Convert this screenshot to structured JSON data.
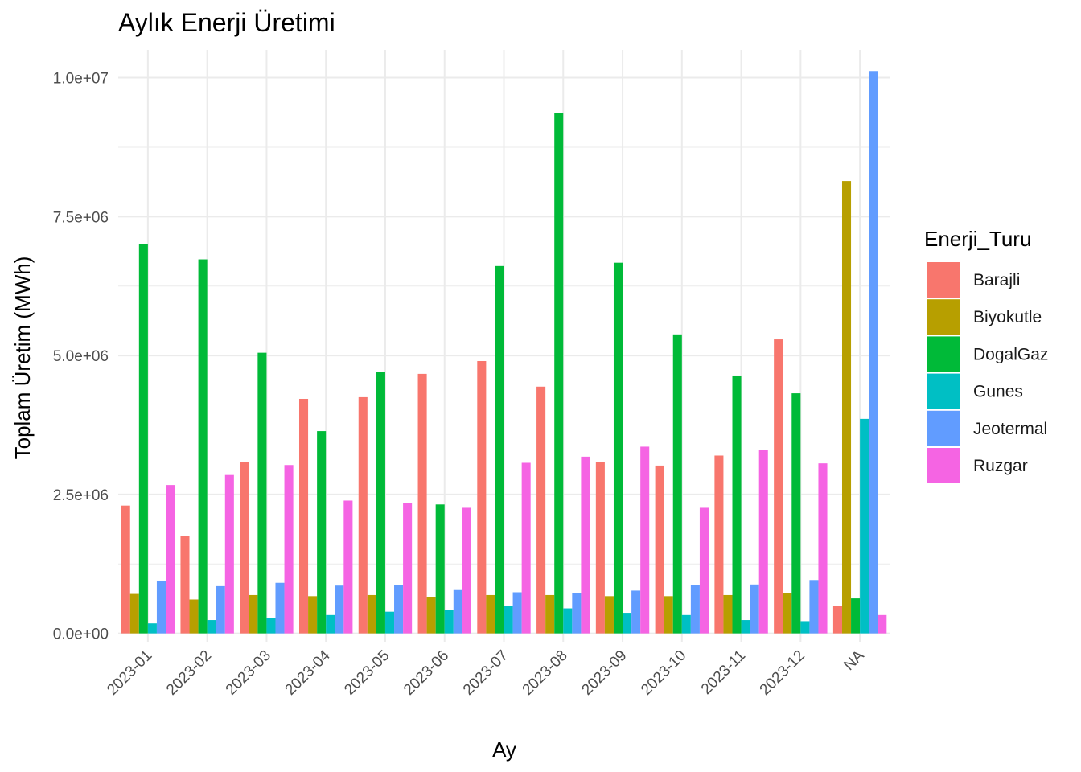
{
  "chart_data": {
    "type": "bar",
    "title": "Aylık Enerji Üretimi",
    "xlabel": "Ay",
    "ylabel": "Toplam Üretim (MWh)",
    "ylim": [
      -150000,
      10500000
    ],
    "yticks": [
      0,
      2500000,
      5000000,
      7500000,
      10000000
    ],
    "ytick_labels": [
      "0.0e+00",
      "2.5e+06",
      "5.0e+06",
      "7.5e+06",
      "1.0e+07"
    ],
    "grid": true,
    "legend_position": "right",
    "legend_title": "Enerji_Turu",
    "categories": [
      "2023-01",
      "2023-02",
      "2023-03",
      "2023-04",
      "2023-05",
      "2023-06",
      "2023-07",
      "2023-08",
      "2023-09",
      "2023-10",
      "2023-11",
      "2023-12",
      "NA"
    ],
    "series": [
      {
        "name": "Barajli",
        "color": "#F8766D",
        "values": [
          2300000,
          1760000,
          3090000,
          4220000,
          4250000,
          4670000,
          4900000,
          4440000,
          3090000,
          3020000,
          3200000,
          5290000,
          500000
        ]
      },
      {
        "name": "Biyokutle",
        "color": "#B79F00",
        "values": [
          710000,
          610000,
          690000,
          670000,
          690000,
          660000,
          690000,
          690000,
          670000,
          670000,
          690000,
          730000,
          8140000
        ]
      },
      {
        "name": "DogalGaz",
        "color": "#00BA38",
        "values": [
          7010000,
          6730000,
          5050000,
          3640000,
          4700000,
          2320000,
          6610000,
          9370000,
          6670000,
          5380000,
          4640000,
          4320000,
          630000
        ]
      },
      {
        "name": "Gunes",
        "color": "#00BFC4",
        "values": [
          180000,
          240000,
          270000,
          330000,
          390000,
          420000,
          490000,
          450000,
          370000,
          330000,
          240000,
          220000,
          3860000
        ]
      },
      {
        "name": "Jeotermal",
        "color": "#619CFF",
        "values": [
          950000,
          850000,
          910000,
          860000,
          870000,
          780000,
          740000,
          720000,
          770000,
          870000,
          880000,
          960000,
          10120000
        ]
      },
      {
        "name": "Ruzgar",
        "color": "#F564E3",
        "values": [
          2670000,
          2850000,
          3030000,
          2390000,
          2350000,
          2260000,
          3070000,
          3180000,
          3360000,
          2260000,
          3300000,
          3060000,
          330000
        ]
      }
    ]
  },
  "colors": {
    "grid": "#ebebeb",
    "tick_text": "#4d4d4d"
  }
}
